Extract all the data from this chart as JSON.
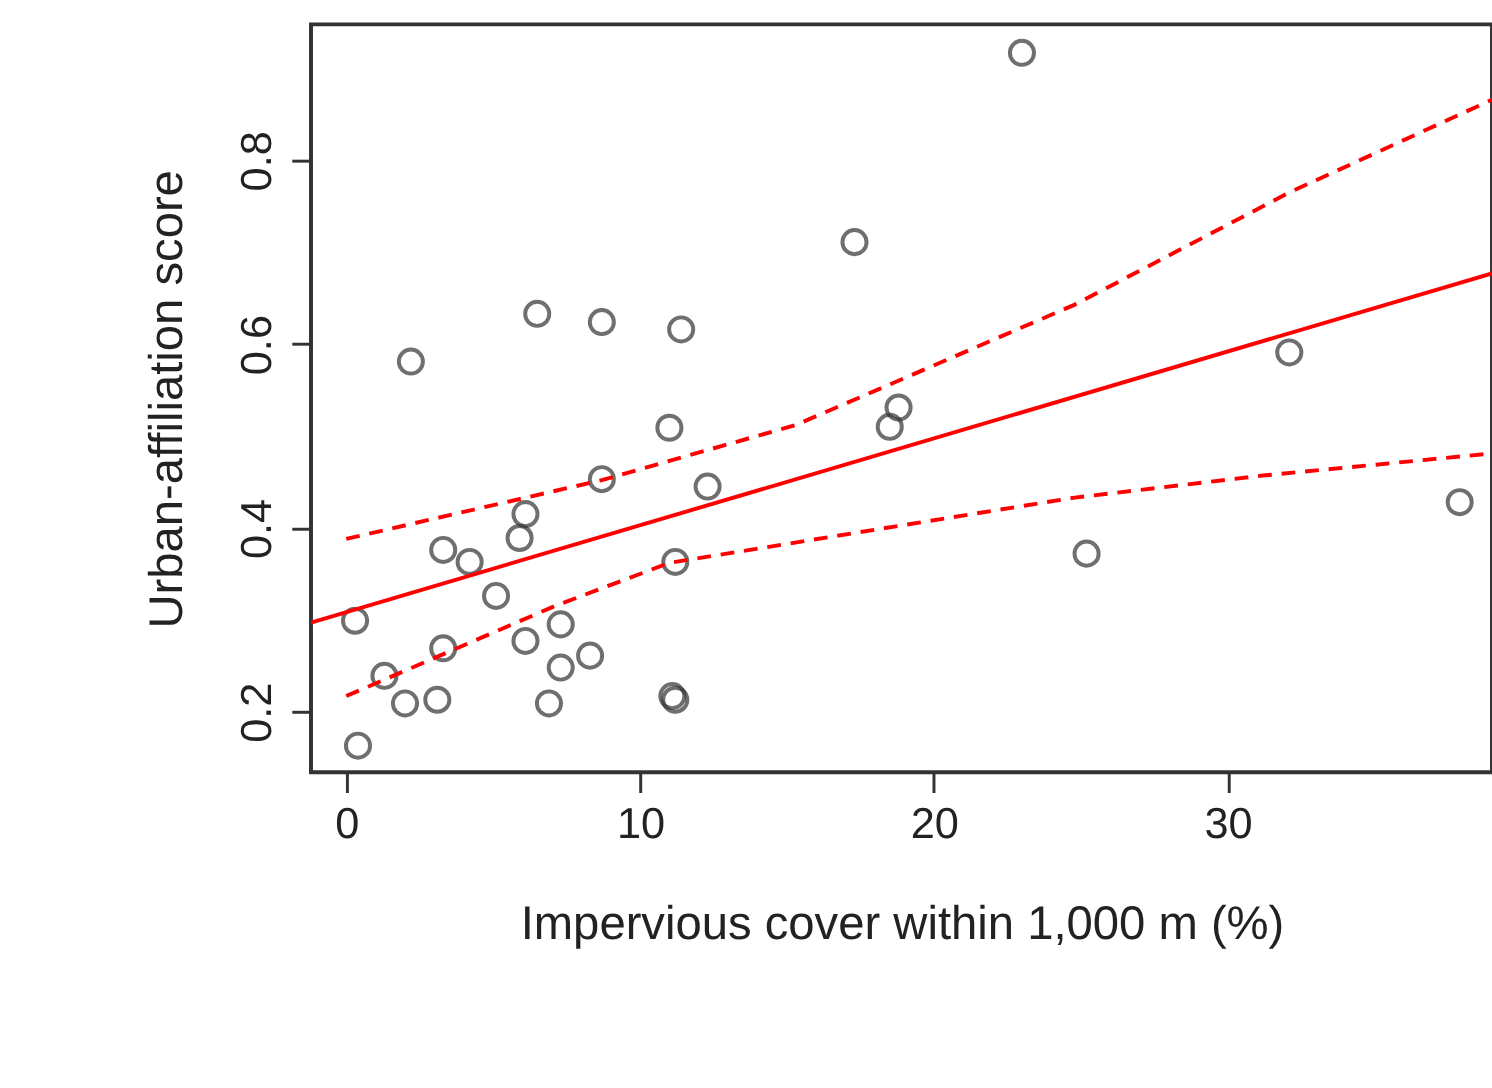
{
  "chart_data": {
    "type": "scatter",
    "xlabel": "Impervious cover within 1,000 m (%)",
    "ylabel": "Urban-affiliation score",
    "xlim": [
      -1.2,
      39
    ],
    "xticks": [
      0,
      10,
      20,
      30
    ],
    "ylim": [
      0.134,
      0.948
    ],
    "yticks": [
      0.2,
      0.4,
      0.6,
      0.8
    ],
    "grid": false,
    "series": [
      {
        "color": "#333333",
        "marker": "circle",
        "x": [
          0.4,
          0.3,
          1.3,
          2.0,
          3.1,
          3.3,
          3.3,
          4.2,
          5.1,
          5.9,
          6.1,
          6.1,
          6.9,
          7.3,
          7.3,
          8.3,
          8.7,
          11.0,
          12.3,
          11.2,
          11.1,
          11.2,
          18.5,
          18.8,
          2.2,
          6.5,
          8.7,
          11.4,
          17.3,
          23.0,
          25.2,
          32.1,
          37.9
        ],
        "values": [
          0.163,
          0.299,
          0.239,
          0.209,
          0.213,
          0.269,
          0.376,
          0.363,
          0.326,
          0.389,
          0.415,
          0.277,
          0.209,
          0.295,
          0.248,
          0.261,
          0.453,
          0.509,
          0.445,
          0.363,
          0.217,
          0.213,
          0.51,
          0.531,
          0.581,
          0.633,
          0.624,
          0.616,
          0.711,
          0.917,
          0.372,
          0.591,
          0.428
        ]
      },
      {
        "type": "line",
        "color": "#ff0000",
        "line_style": "solid",
        "marker": "none",
        "x": [
          -1.2,
          39
        ],
        "values": [
          0.297,
          0.677
        ]
      },
      {
        "type": "line",
        "color": "#ff0000",
        "line_style": "dashed",
        "marker": "none",
        "x": [
          0,
          8.7,
          15.3,
          24.8,
          32.1,
          39
        ],
        "values": [
          0.388,
          0.452,
          0.512,
          0.643,
          0.765,
          0.866
        ]
      },
      {
        "type": "line",
        "color": "#ff0000",
        "line_style": "dashed",
        "marker": "none",
        "x": [
          0,
          7.1,
          11.0,
          24.8,
          31.2,
          39
        ],
        "values": [
          0.217,
          0.315,
          0.362,
          0.433,
          0.457,
          0.481
        ]
      }
    ]
  }
}
